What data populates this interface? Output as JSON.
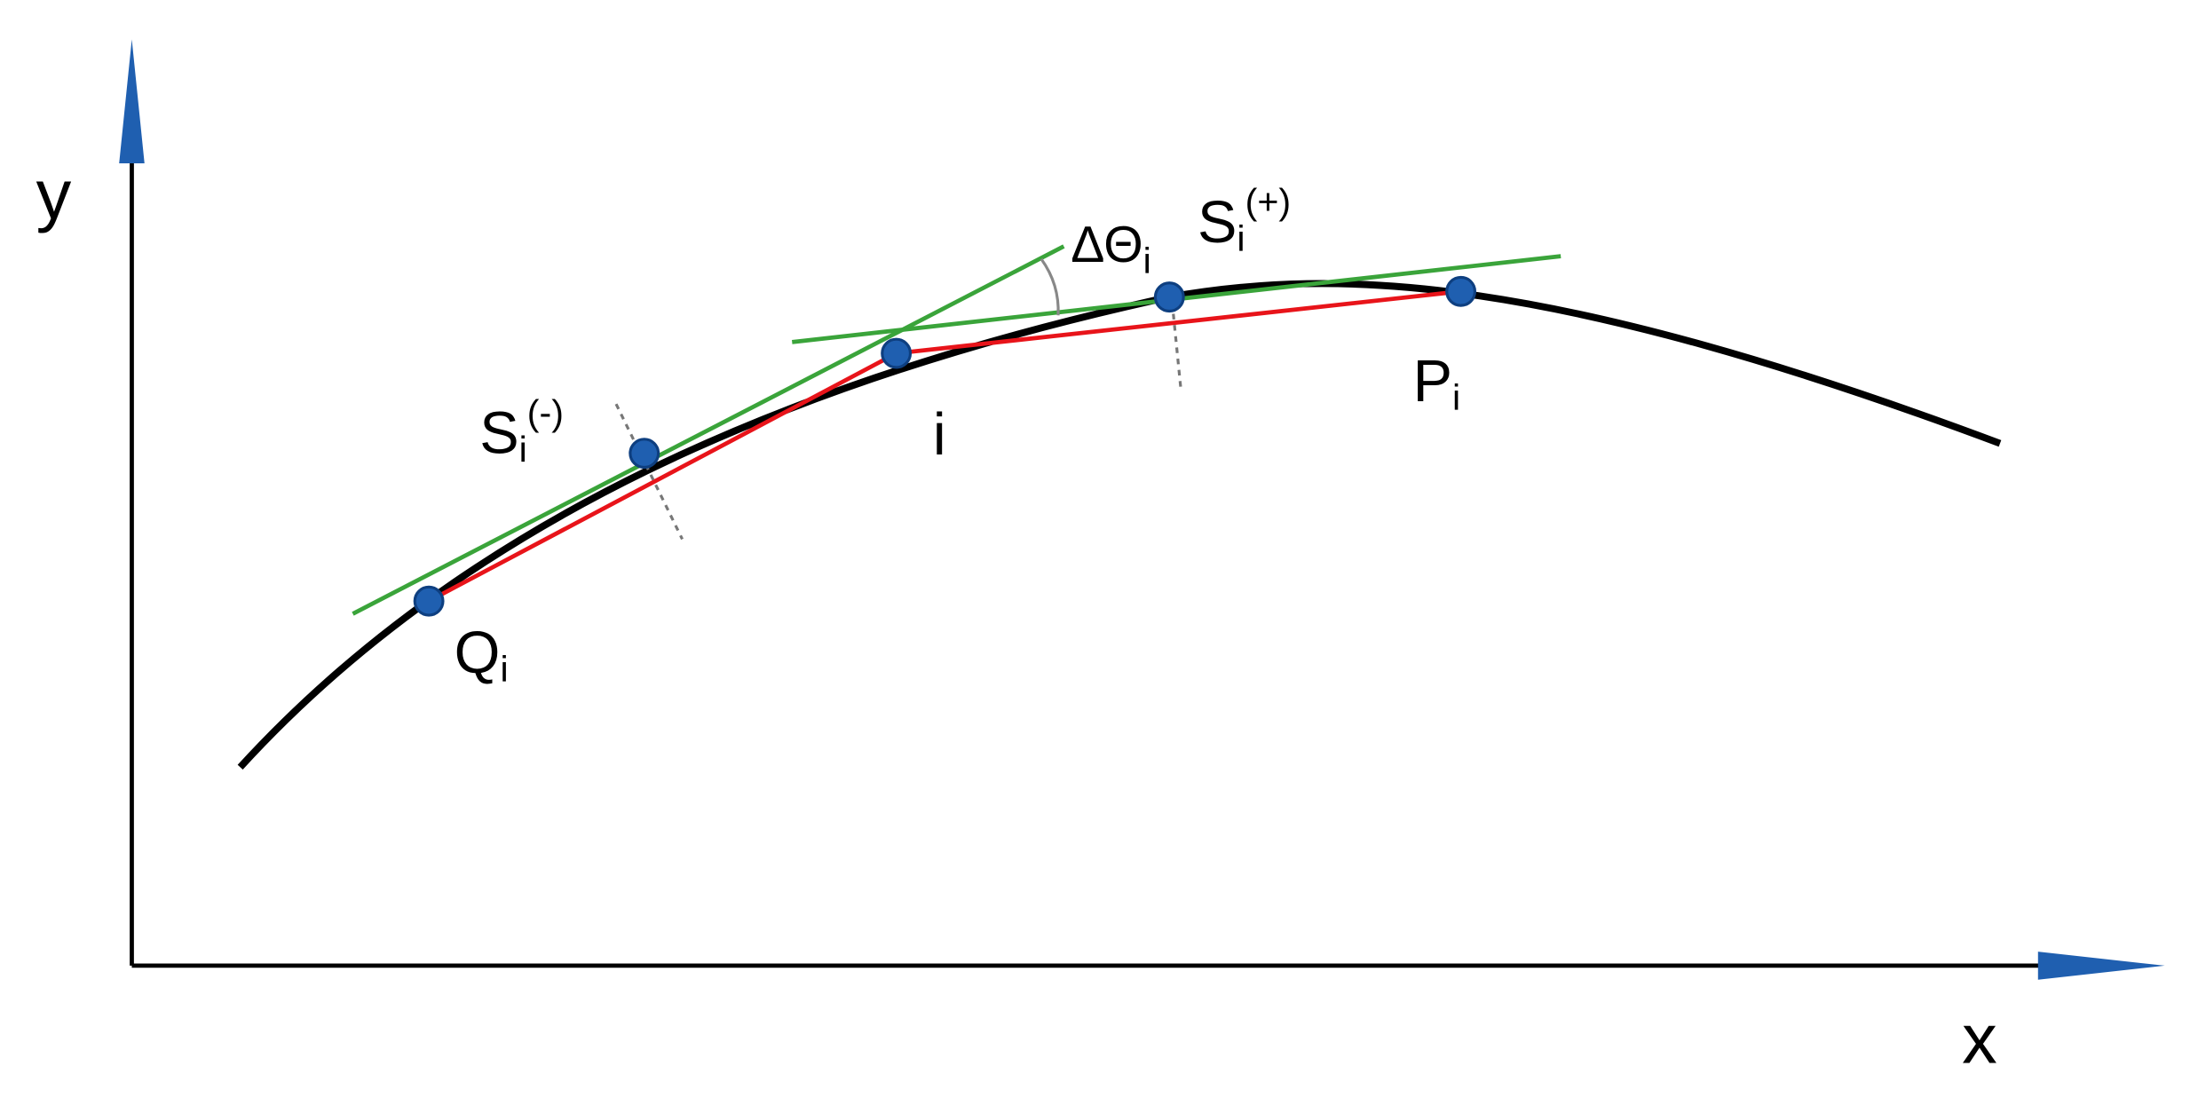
{
  "axes": {
    "x": {
      "label": "x"
    },
    "y": {
      "label": "y"
    }
  },
  "nodes": [
    {
      "label": "Q",
      "sub": "i"
    },
    {
      "label": "S",
      "sub": "i",
      "sup": "(-)"
    },
    {
      "label": "i"
    },
    {
      "label": "S",
      "sub": "i",
      "sup": "(+)"
    },
    {
      "label": "P",
      "sub": "i"
    }
  ],
  "angle": {
    "label": "ΔΘ",
    "sub": "i"
  }
}
